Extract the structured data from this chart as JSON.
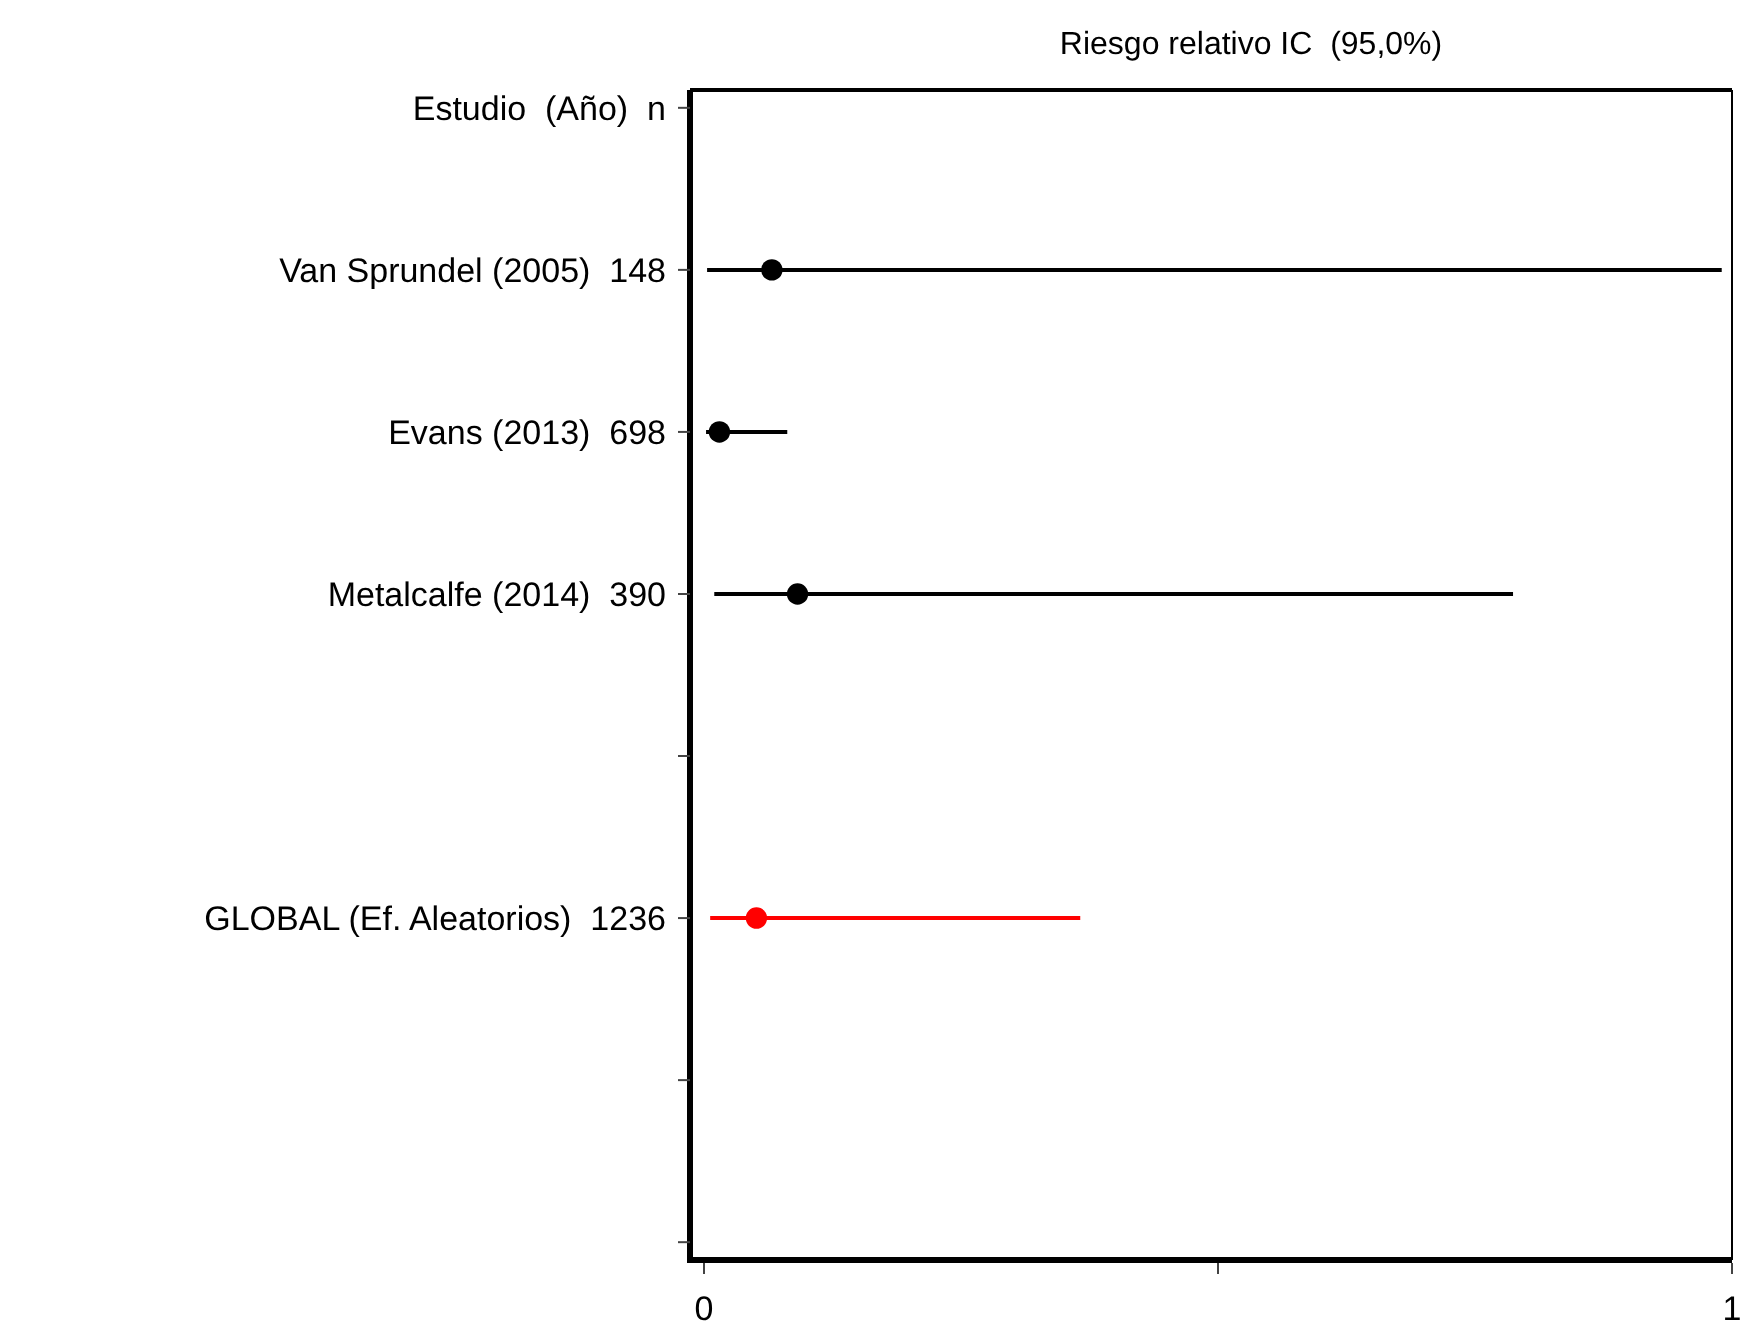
{
  "chart_data": {
    "type": "scatter",
    "orientation": "horizontal",
    "title": "Riesgo relativo IC  (95,0%)",
    "categories": [
      "Estudio  (Año)  n",
      "Van Sprundel (2005)  148",
      "Evans (2013)  698",
      "Metalcalfe (2014)  390",
      null,
      "GLOBAL (Ef. Aleatorios)  1236",
      null,
      null
    ],
    "values": [
      null,
      0.066,
      0.015,
      0.091,
      null,
      0.051,
      null,
      null
    ],
    "errors": [
      null,
      [
        0.003,
        0.99
      ],
      [
        0.002,
        0.081
      ],
      [
        0.01,
        0.787
      ],
      null,
      [
        0.006,
        0.366
      ],
      null,
      null
    ],
    "colors": [
      null,
      "#000000",
      "#000000",
      "#000000",
      null,
      "#ff0000",
      null,
      null
    ],
    "marker": "circle",
    "xlim": [
      0,
      1
    ],
    "xticks": [
      0,
      {
        "value": 0.5,
        "label": null
      },
      1
    ],
    "grid": false
  }
}
